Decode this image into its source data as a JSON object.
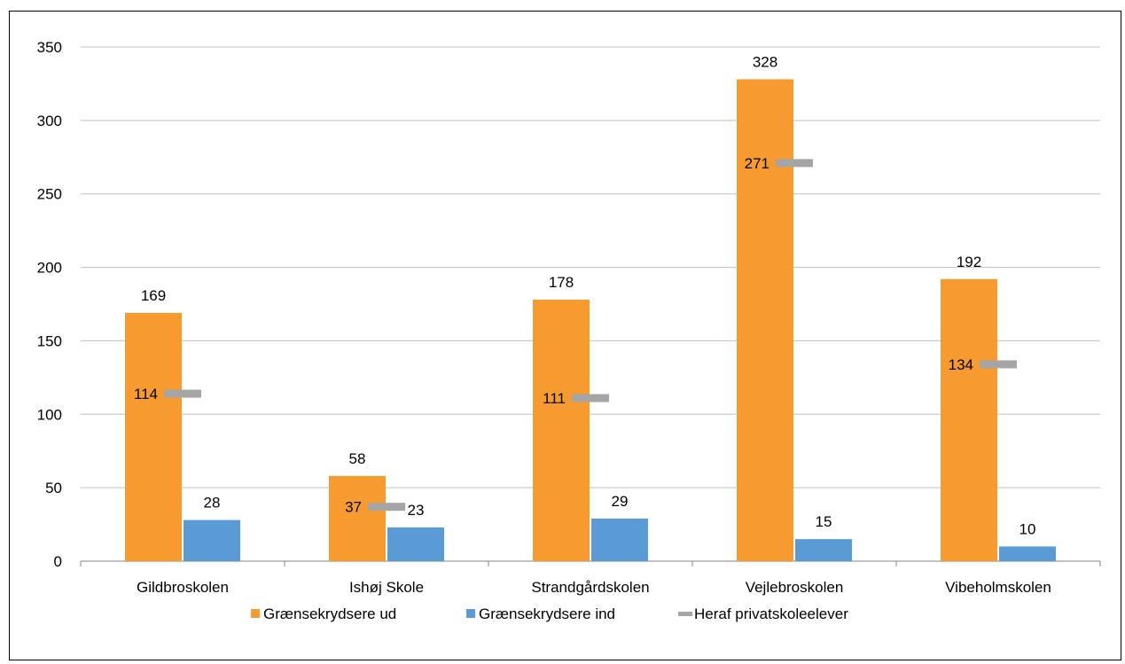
{
  "chart_data": {
    "type": "bar",
    "categories": [
      "Gildbroskolen",
      "Ishøj Skole",
      "Strandgårdskolen",
      "Vejlebroskolen",
      "Vibeholmskolen"
    ],
    "series": [
      {
        "name": "Grænsekrydsere ud",
        "values": [
          169,
          58,
          178,
          328,
          192
        ],
        "color": "#F79A30",
        "kind": "bar"
      },
      {
        "name": "Grænsekrydsere ind",
        "values": [
          28,
          23,
          29,
          15,
          10
        ],
        "color": "#5B9BD5",
        "kind": "bar"
      },
      {
        "name": "Heraf privatskoleelever",
        "values": [
          114,
          37,
          111,
          271,
          134
        ],
        "color": "#A5A5A5",
        "kind": "marker"
      }
    ],
    "ylim": [
      0,
      350
    ],
    "yticks": [
      0,
      50,
      100,
      150,
      200,
      250,
      300,
      350
    ],
    "grid": true,
    "legend": "bottom"
  }
}
